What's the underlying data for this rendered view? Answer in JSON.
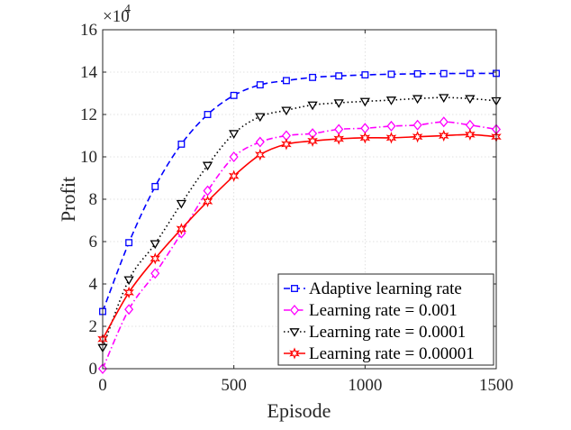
{
  "chart_data": {
    "type": "line",
    "title": "",
    "xlabel": "Episode",
    "ylabel": "Profit",
    "y_multiplier_label": "×10",
    "y_multiplier_exponent": "4",
    "xlim": [
      0,
      1500
    ],
    "ylim": [
      0,
      16
    ],
    "xticks": [
      0,
      500,
      1000,
      1500
    ],
    "yticks": [
      0,
      2,
      4,
      6,
      8,
      10,
      12,
      14,
      16
    ],
    "grid": true,
    "legend_position": "bottom-right",
    "series": [
      {
        "name": "Adaptive learning rate",
        "color": "#0000ff",
        "dash": "dashed",
        "marker": "square",
        "x": [
          0,
          100,
          200,
          300,
          400,
          500,
          600,
          700,
          800,
          900,
          1000,
          1100,
          1200,
          1300,
          1400,
          1500
        ],
        "y": [
          2.7,
          5.95,
          8.6,
          10.6,
          12.0,
          12.9,
          13.4,
          13.6,
          13.75,
          13.82,
          13.87,
          13.9,
          13.92,
          13.93,
          13.94,
          13.94
        ]
      },
      {
        "name": "Learning rate = 0.001",
        "color": "#ff00ff",
        "dash": "dashdot",
        "marker": "diamond",
        "x": [
          0,
          100,
          200,
          300,
          400,
          500,
          600,
          700,
          800,
          900,
          1000,
          1100,
          1200,
          1300,
          1400,
          1500
        ],
        "y": [
          0.0,
          2.8,
          4.5,
          6.4,
          8.4,
          10.0,
          10.7,
          11.0,
          11.1,
          11.3,
          11.35,
          11.45,
          11.5,
          11.65,
          11.5,
          11.3
        ]
      },
      {
        "name": "Learning rate = 0.0001",
        "color": "#000000",
        "dash": "dotted",
        "marker": "triangle-down",
        "x": [
          0,
          100,
          200,
          300,
          400,
          500,
          600,
          700,
          800,
          900,
          1000,
          1100,
          1200,
          1300,
          1400,
          1500
        ],
        "y": [
          1.0,
          4.2,
          5.9,
          7.8,
          9.6,
          11.1,
          11.9,
          12.2,
          12.45,
          12.55,
          12.62,
          12.68,
          12.75,
          12.8,
          12.75,
          12.65
        ]
      },
      {
        "name": "Learning rate = 0.00001",
        "color": "#ff0000",
        "dash": "solid",
        "marker": "hexagram",
        "x": [
          0,
          100,
          200,
          300,
          400,
          500,
          600,
          700,
          800,
          900,
          1000,
          1100,
          1200,
          1300,
          1400,
          1500
        ],
        "y": [
          1.4,
          3.6,
          5.2,
          6.6,
          7.9,
          9.1,
          10.1,
          10.6,
          10.75,
          10.85,
          10.9,
          10.9,
          10.95,
          11.0,
          11.05,
          10.95
        ]
      }
    ]
  }
}
